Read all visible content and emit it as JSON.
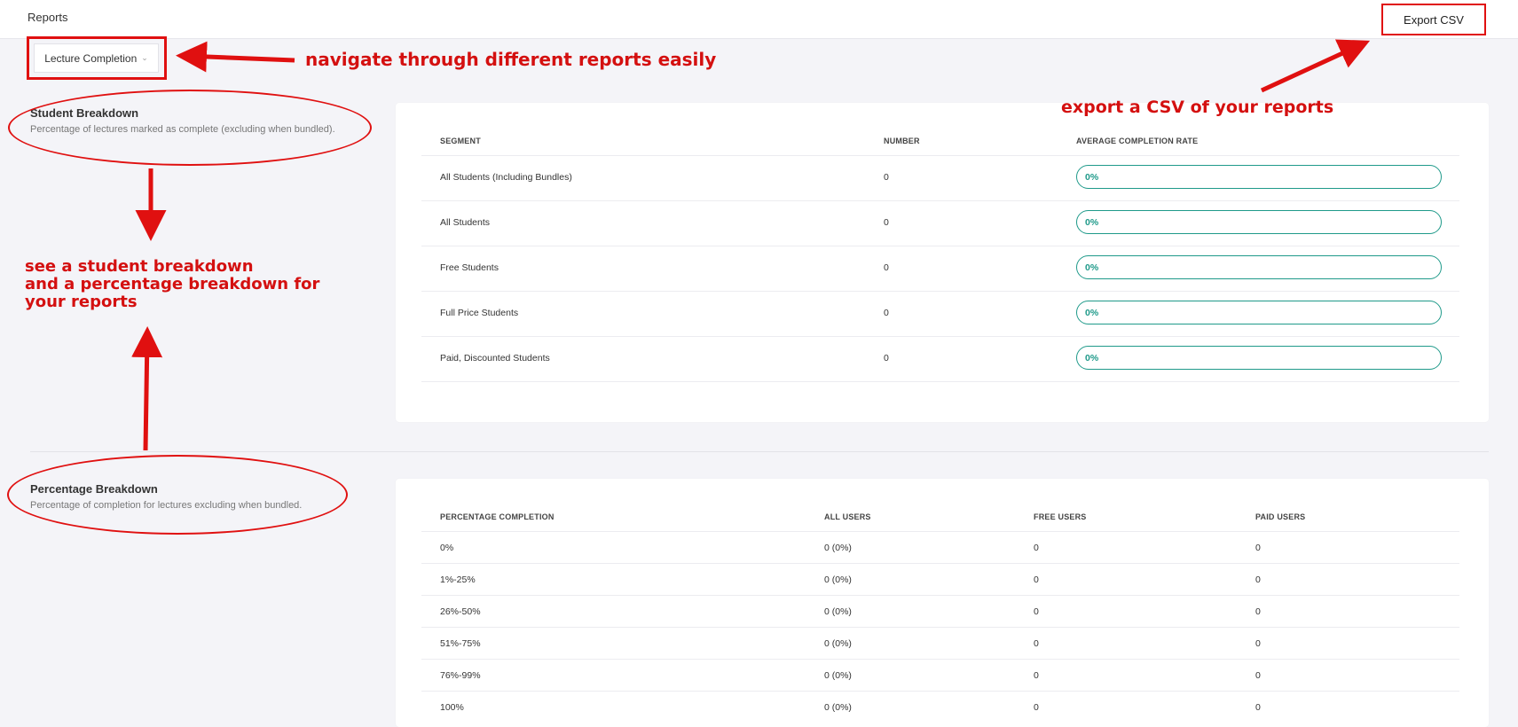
{
  "header": {
    "title": "Reports",
    "export_label": "Export CSV"
  },
  "report_select": {
    "value": "Lecture Completion",
    "icon": "chevron-down-icon"
  },
  "student_breakdown": {
    "title": "Student Breakdown",
    "description": "Percentage of lectures marked as complete (excluding when bundled).",
    "columns": [
      "SEGMENT",
      "NUMBER",
      "AVERAGE COMPLETION RATE"
    ],
    "rows": [
      {
        "segment": "All Students (Including Bundles)",
        "number": "0",
        "rate": "0%",
        "rate_fraction": 0
      },
      {
        "segment": "All Students",
        "number": "0",
        "rate": "0%",
        "rate_fraction": 0
      },
      {
        "segment": "Free Students",
        "number": "0",
        "rate": "0%",
        "rate_fraction": 0
      },
      {
        "segment": "Full Price Students",
        "number": "0",
        "rate": "0%",
        "rate_fraction": 0
      },
      {
        "segment": "Paid, Discounted Students",
        "number": "0",
        "rate": "0%",
        "rate_fraction": 0
      }
    ]
  },
  "percentage_breakdown": {
    "title": "Percentage Breakdown",
    "description": "Percentage of completion for lectures excluding when bundled.",
    "columns": [
      "PERCENTAGE COMPLETION",
      "ALL USERS",
      "FREE USERS",
      "PAID USERS"
    ],
    "rows": [
      {
        "range": "0%",
        "all": "0 (0%)",
        "free": "0",
        "paid": "0"
      },
      {
        "range": "1%-25%",
        "all": "0 (0%)",
        "free": "0",
        "paid": "0"
      },
      {
        "range": "26%-50%",
        "all": "0 (0%)",
        "free": "0",
        "paid": "0"
      },
      {
        "range": "51%-75%",
        "all": "0 (0%)",
        "free": "0",
        "paid": "0"
      },
      {
        "range": "76%-99%",
        "all": "0 (0%)",
        "free": "0",
        "paid": "0"
      },
      {
        "range": "100%",
        "all": "0 (0%)",
        "free": "0",
        "paid": "0"
      }
    ]
  },
  "annotations": {
    "nav": "navigate through different reports easily",
    "export": "export a CSV of your reports",
    "breakdown_line1": "see a student breakdown",
    "breakdown_line2": "and a percentage breakdown for",
    "breakdown_line3": "your reports",
    "color": "#e01010"
  },
  "colors": {
    "accent": "#1f9a8a",
    "background": "#f4f4f8",
    "annotation": "#e01010"
  }
}
